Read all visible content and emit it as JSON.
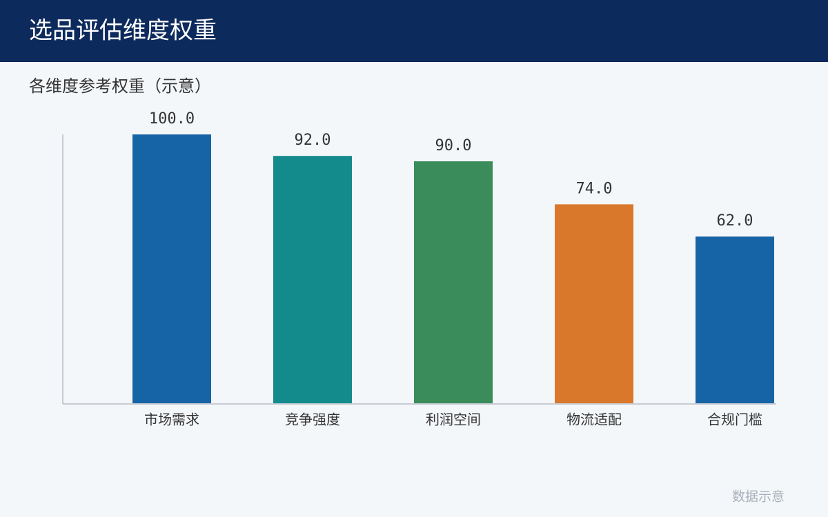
{
  "chart_data": {
    "type": "bar",
    "title": "选品评估维度权重",
    "subtitle": "各维度参考权重（示意）",
    "categories": [
      "市场需求",
      "竞争强度",
      "利润空间",
      "物流适配",
      "合规门槛"
    ],
    "values": [
      100,
      92,
      90,
      74,
      62
    ],
    "value_labels": [
      "100.0",
      "92.0",
      "90.0",
      "74.0",
      "62.0"
    ],
    "colors": [
      "#1663a5",
      "#138a8c",
      "#3a8c5a",
      "#d9782a",
      "#1663a5"
    ],
    "ylim": [
      0,
      100
    ],
    "note": "数据示意"
  }
}
